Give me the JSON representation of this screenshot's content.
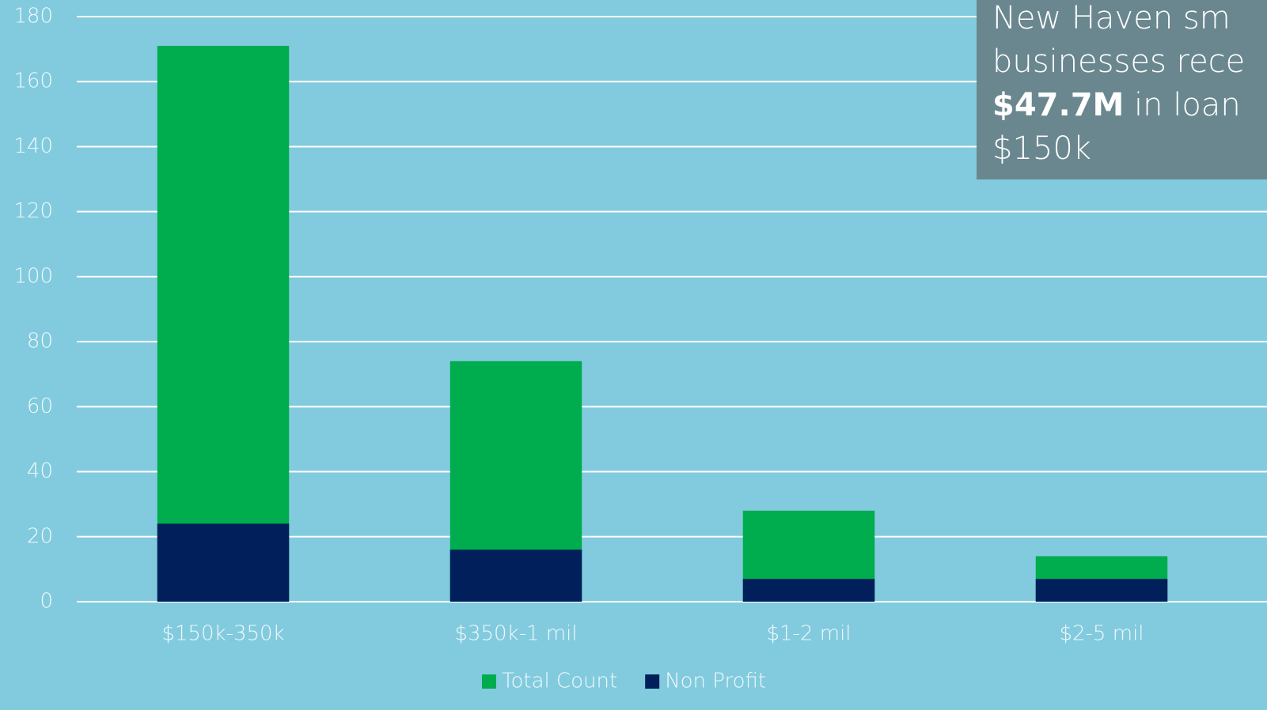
{
  "chart_data": {
    "type": "bar",
    "overlap": true,
    "categories": [
      "$150k-350k",
      "$350k-1 mil",
      "$1-2 mil",
      "$2-5 mil"
    ],
    "series": [
      {
        "name": "Total Count",
        "color": "#00ad4e",
        "values": [
          171,
          74,
          28,
          14
        ]
      },
      {
        "name": "Non Profit",
        "color": "#001f5b",
        "values": [
          24,
          16,
          7,
          7
        ]
      }
    ],
    "ylim": [
      0,
      180
    ],
    "yticks": [
      0,
      20,
      40,
      60,
      80,
      100,
      120,
      140,
      160,
      180
    ],
    "grid": true,
    "legend": "bottom",
    "annotation": [
      [
        "New Haven sm"
      ],
      [
        "businesses rece"
      ],
      [
        "$47.7M",
        " in loan"
      ],
      [
        "$150k"
      ]
    ]
  }
}
